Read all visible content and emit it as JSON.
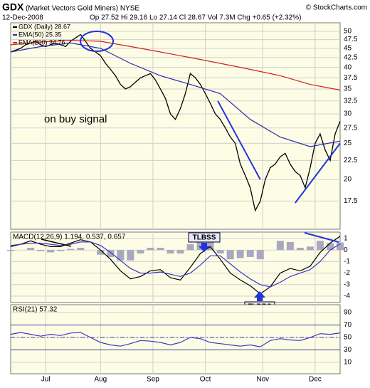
{
  "header": {
    "symbol": "GDX",
    "name": "(Market Vectors Gold Miners) NYSE",
    "source": "© StockCharts.com",
    "date": "12-Dec-2008",
    "stats": "Op 27.52 Hi 29.16 Lo 27.14 Cl 28.67 Vol 7.3M Chg +0.65 (+2.32%)"
  },
  "chart_data": [
    {
      "type": "line",
      "log_scale": true,
      "grid": true,
      "annotation": "on buy signal",
      "annotation_color": "#22aa22",
      "ylim": [
        14.7,
        52.7
      ],
      "yticks": [
        17.5,
        20,
        22.5,
        25,
        27.5,
        30,
        32.5,
        35,
        37.5,
        40,
        42.5,
        45,
        47.5,
        50
      ],
      "series": [
        {
          "name": "GDX (Daily) 28.67",
          "color": "#000000",
          "x": [
            0,
            2,
            4,
            6,
            8,
            10,
            12,
            14,
            16,
            18,
            20,
            22,
            24,
            26,
            28,
            30,
            32,
            34,
            36,
            38,
            40,
            42,
            44,
            46,
            48,
            50,
            52,
            54,
            56,
            58,
            60,
            62,
            64,
            66,
            68,
            70,
            72,
            74,
            76,
            78,
            80,
            82,
            84,
            86,
            88,
            90,
            92,
            94,
            96,
            98,
            100,
            102,
            104,
            106,
            108,
            110,
            112,
            114,
            116,
            118,
            120,
            122,
            124,
            126,
            128,
            130,
            132
          ],
          "values": [
            44,
            44.5,
            45,
            46,
            46.5,
            47,
            46,
            45.5,
            46,
            46.5,
            46,
            45.5,
            47,
            48,
            49,
            47,
            45,
            44,
            43,
            41,
            39.5,
            38,
            36,
            35,
            35.5,
            36.5,
            37.5,
            38,
            38.5,
            37,
            35,
            33,
            30,
            29,
            31,
            34,
            38.5,
            37.5,
            36,
            34,
            32,
            30,
            29,
            27.5,
            26,
            25,
            22,
            20.5,
            19,
            16.5,
            17.5,
            20,
            21.5,
            22,
            23,
            23.5,
            22,
            21,
            20.5,
            19,
            21.5,
            25,
            26.5,
            24,
            22.5,
            26.5,
            28.67
          ]
        },
        {
          "name": "EMA(50) 25.35",
          "color": "#2a2ab0",
          "x": [
            0,
            12,
            24,
            36,
            48,
            60,
            72,
            84,
            96,
            108,
            120,
            132
          ],
          "values": [
            44,
            45.5,
            46.5,
            45,
            41,
            38,
            36,
            34,
            29,
            26,
            24.5,
            25.35
          ]
        },
        {
          "name": "EMA(200) 34.76",
          "color": "#d02020",
          "x": [
            0,
            12,
            24,
            36,
            48,
            60,
            72,
            84,
            96,
            108,
            120,
            132
          ],
          "values": [
            46,
            46.8,
            47.3,
            47,
            45.5,
            44,
            42.5,
            41,
            39.5,
            38,
            36,
            34.76
          ]
        }
      ],
      "trendlines": [
        {
          "color": "#2233dd",
          "x": [
            83,
            100
          ],
          "values": [
            32.5,
            20
          ]
        },
        {
          "color": "#2233dd",
          "x": [
            114,
            132
          ],
          "values": [
            17.3,
            25
          ]
        }
      ]
    },
    {
      "type": "line",
      "grid": true,
      "label": "MACD(12,26,9) 1.194, 0.537, 0.657",
      "ylim": [
        -4.56,
        1.56
      ],
      "yticks": [
        1,
        0,
        -1,
        -2,
        -3,
        -4
      ],
      "annotations": [
        "TLBSS",
        "TLBBS"
      ],
      "series": [
        {
          "type": "bar",
          "color": "#a8a8c0",
          "x": [
            0,
            4,
            8,
            12,
            16,
            20,
            24,
            28,
            32,
            36,
            40,
            44,
            48,
            52,
            56,
            60,
            64,
            68,
            72,
            76,
            80,
            84,
            88,
            92,
            96,
            100,
            104,
            108,
            112,
            116,
            120,
            124,
            128,
            132
          ],
          "values": [
            -0.1,
            0,
            0.2,
            -0.1,
            -0.2,
            -0.1,
            0.1,
            0.2,
            0,
            -0.4,
            -0.6,
            -0.9,
            -0.9,
            -0.3,
            0.2,
            0.2,
            -0.3,
            -0.3,
            0.5,
            1,
            0.8,
            -0.3,
            -0.8,
            -0.7,
            -0.6,
            -0.8,
            0,
            0.8,
            0.7,
            0.2,
            0.3,
            0.8,
            0.6,
            0.657
          ]
        },
        {
          "color": "#000000",
          "x": [
            0,
            4,
            8,
            12,
            16,
            20,
            24,
            28,
            32,
            36,
            40,
            44,
            48,
            52,
            56,
            60,
            64,
            68,
            72,
            76,
            80,
            84,
            88,
            92,
            96,
            100,
            104,
            108,
            112,
            116,
            120,
            124,
            128,
            132
          ],
          "values": [
            0.3,
            0.5,
            0.8,
            0.5,
            0.3,
            0.3,
            0.6,
            0.9,
            0.7,
            0,
            -0.8,
            -1.8,
            -2.5,
            -2.3,
            -1.8,
            -1.7,
            -2.4,
            -2.6,
            -1.5,
            -0.3,
            0.3,
            -0.8,
            -2,
            -2.6,
            -3.1,
            -3.8,
            -3.2,
            -2,
            -1.6,
            -1.8,
            -1.4,
            -0.2,
            0.6,
            1.194
          ]
        },
        {
          "color": "#3838c8",
          "x": [
            0,
            4,
            8,
            12,
            16,
            20,
            24,
            28,
            32,
            36,
            40,
            44,
            48,
            52,
            56,
            60,
            64,
            68,
            72,
            76,
            80,
            84,
            88,
            92,
            96,
            100,
            104,
            108,
            112,
            116,
            120,
            124,
            128,
            132
          ],
          "values": [
            0.4,
            0.5,
            0.6,
            0.6,
            0.5,
            0.4,
            0.5,
            0.7,
            0.7,
            0.4,
            -0.2,
            -0.9,
            -1.6,
            -2,
            -2,
            -1.9,
            -2.1,
            -2.3,
            -2,
            -1.3,
            -0.5,
            -0.5,
            -1.2,
            -1.9,
            -2.5,
            -3,
            -3.2,
            -2.8,
            -2.3,
            -2,
            -1.7,
            -1,
            0,
            0.537
          ]
        }
      ]
    },
    {
      "type": "line",
      "grid": true,
      "label": "RSI(21) 57.32",
      "ylim": [
        -8.4,
        102.6
      ],
      "yticks": [
        90,
        70,
        50,
        30,
        10
      ],
      "levels": [
        70,
        30
      ],
      "midline": 50,
      "xlim": [
        0,
        132
      ],
      "xticks": [
        {
          "value": 14,
          "label": "Jul"
        },
        {
          "value": 36,
          "label": "Aug"
        },
        {
          "value": 57,
          "label": "Sep"
        },
        {
          "value": 78,
          "label": "Oct"
        },
        {
          "value": 101,
          "label": "Nov"
        },
        {
          "value": 122,
          "label": "Dec"
        }
      ],
      "series": [
        {
          "color": "#3838c8",
          "x": [
            0,
            4,
            8,
            12,
            16,
            20,
            24,
            28,
            32,
            36,
            40,
            44,
            48,
            52,
            56,
            60,
            64,
            68,
            72,
            76,
            80,
            84,
            88,
            92,
            96,
            100,
            104,
            108,
            112,
            116,
            120,
            124,
            128,
            132
          ],
          "values": [
            55,
            58,
            55,
            52,
            55,
            53,
            57,
            58,
            50,
            42,
            38,
            36,
            40,
            45,
            44,
            42,
            38,
            42,
            50,
            48,
            42,
            40,
            38,
            36,
            38,
            35,
            45,
            48,
            46,
            45,
            50,
            56,
            55,
            57.32
          ]
        }
      ]
    }
  ]
}
